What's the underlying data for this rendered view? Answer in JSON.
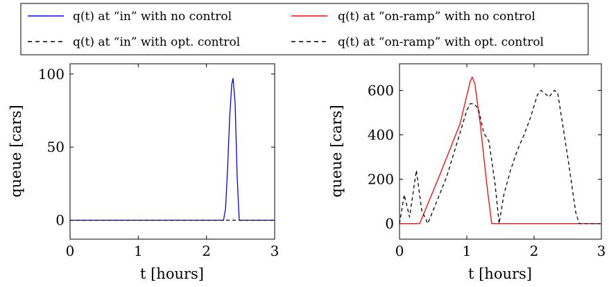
{
  "legend": [
    {
      "label": "q(t) at “in” with no control",
      "color": "#0000ff",
      "dash": false
    },
    {
      "label": "q(t) at “on-ramp” with no control",
      "color": "#ff0000",
      "dash": false
    },
    {
      "label": "q(t) at “in” with opt. control",
      "color": "#000000",
      "dash": true
    },
    {
      "label": "q(t) at “on-ramp” with opt. control",
      "color": "#000000",
      "dash": true
    }
  ],
  "chart_data": [
    {
      "type": "line",
      "xlabel": "t [hours]",
      "ylabel": "queue [cars]",
      "xlim": [
        0,
        3
      ],
      "ylim": [
        -13,
        107
      ],
      "xticks": [
        0,
        1,
        2,
        3
      ],
      "yticks": [
        0,
        50,
        100
      ],
      "grid": false,
      "series": [
        {
          "name": "q(t) at “in” with no control",
          "color": "#0000ff",
          "dash": false,
          "x": [
            0,
            2.2,
            2.25,
            2.28,
            2.31,
            2.34,
            2.37,
            2.39,
            2.42,
            2.45,
            2.48,
            3.0
          ],
          "y": [
            0,
            0,
            0,
            8,
            35,
            70,
            93,
            97,
            80,
            30,
            0,
            0
          ]
        },
        {
          "name": "q(t) at “in” with opt. control",
          "color": "#000000",
          "dash": true,
          "x": [
            0,
            3.0
          ],
          "y": [
            0,
            0
          ]
        }
      ]
    },
    {
      "type": "line",
      "xlabel": "t [hours]",
      "ylabel": "queue [cars]",
      "xlim": [
        0,
        3
      ],
      "ylim": [
        -70,
        720
      ],
      "xticks": [
        0,
        1,
        2,
        3
      ],
      "yticks": [
        0,
        200,
        400,
        600
      ],
      "grid": false,
      "series": [
        {
          "name": "q(t) at “on-ramp” with no control",
          "color": "#ff0000",
          "dash": false,
          "x": [
            0,
            0.3,
            0.6,
            0.9,
            1.05,
            1.08,
            1.12,
            1.2,
            1.3,
            1.37,
            1.5,
            2.0,
            3.0
          ],
          "y": [
            0,
            0,
            220,
            450,
            640,
            660,
            630,
            450,
            170,
            0,
            0,
            0,
            0
          ]
        },
        {
          "name": "q(t) at “on-ramp” with opt. control",
          "color": "#000000",
          "dash": true,
          "x": [
            0,
            0.07,
            0.15,
            0.25,
            0.33,
            0.42,
            0.5,
            0.7,
            0.85,
            1.0,
            1.05,
            1.1,
            1.17,
            1.25,
            1.33,
            1.42,
            1.48,
            1.55,
            1.65,
            1.75,
            1.85,
            1.95,
            2.05,
            2.1,
            2.15,
            2.22,
            2.3,
            2.35,
            2.5,
            2.62,
            2.67,
            2.75,
            3.0
          ],
          "y": [
            0,
            130,
            30,
            240,
            60,
            0,
            60,
            210,
            360,
            510,
            540,
            540,
            520,
            410,
            370,
            180,
            0,
            130,
            240,
            330,
            400,
            480,
            580,
            600,
            590,
            570,
            600,
            590,
            300,
            50,
            0,
            0,
            0
          ]
        }
      ]
    }
  ]
}
